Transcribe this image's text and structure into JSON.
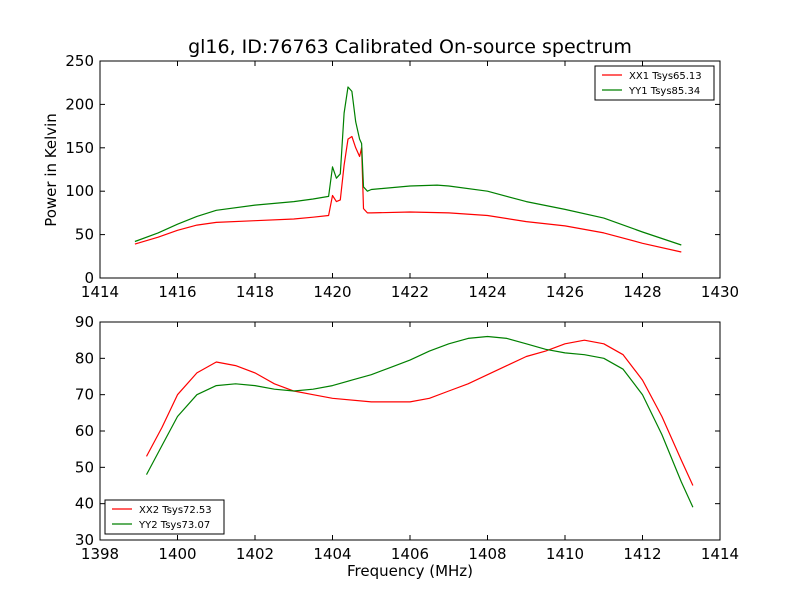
{
  "figure": {
    "background": "#ffffff"
  },
  "chart_data": [
    {
      "type": "line",
      "title": "gl16, ID:76763 Calibrated On-source spectrum",
      "xlabel": "",
      "ylabel": "Power in Kelvin",
      "xlim": [
        1414,
        1430
      ],
      "ylim": [
        0,
        250
      ],
      "xticks": [
        "1414",
        "1416",
        "1418",
        "1420",
        "1422",
        "1424",
        "1426",
        "1428",
        "1430"
      ],
      "yticks": [
        "0",
        "50",
        "100",
        "150",
        "200",
        "250"
      ],
      "grid": false,
      "legend_position": "top-right",
      "series": [
        {
          "name": "XX1 Tsys65.13",
          "color": "#ff0000",
          "x": [
            1414.9,
            1415.5,
            1416,
            1416.5,
            1417,
            1418,
            1419,
            1419.5,
            1419.9,
            1420.0,
            1420.1,
            1420.2,
            1420.3,
            1420.4,
            1420.5,
            1420.6,
            1420.7,
            1420.75,
            1420.8,
            1420.9,
            1421,
            1422,
            1423,
            1424,
            1425,
            1426,
            1427,
            1428,
            1429
          ],
          "y": [
            39,
            47,
            55,
            61,
            64,
            66,
            68,
            70,
            72,
            95,
            88,
            90,
            130,
            160,
            163,
            150,
            140,
            150,
            80,
            75,
            75,
            76,
            75,
            72,
            65,
            60,
            52,
            40,
            30
          ]
        },
        {
          "name": "YY1 Tsys85.34",
          "color": "#008000",
          "x": [
            1414.9,
            1415.5,
            1416,
            1416.5,
            1417,
            1418,
            1419,
            1419.5,
            1419.9,
            1420.0,
            1420.1,
            1420.2,
            1420.3,
            1420.4,
            1420.5,
            1420.6,
            1420.7,
            1420.75,
            1420.8,
            1420.9,
            1421,
            1422,
            1422.7,
            1423,
            1424,
            1425,
            1426,
            1427,
            1428,
            1429
          ],
          "y": [
            42,
            52,
            62,
            71,
            78,
            84,
            88,
            91,
            94,
            128,
            115,
            120,
            190,
            220,
            215,
            180,
            160,
            155,
            105,
            100,
            102,
            106,
            107,
            106,
            100,
            88,
            79,
            69,
            53,
            38
          ]
        }
      ]
    },
    {
      "type": "line",
      "title": "",
      "xlabel": "Frequency (MHz)",
      "ylabel": "",
      "xlim": [
        1398,
        1414
      ],
      "ylim": [
        30,
        90
      ],
      "xticks": [
        "1398",
        "1400",
        "1402",
        "1404",
        "1406",
        "1408",
        "1410",
        "1412",
        "1414"
      ],
      "yticks": [
        "30",
        "40",
        "50",
        "60",
        "70",
        "80",
        "90"
      ],
      "grid": false,
      "legend_position": "bottom-left",
      "series": [
        {
          "name": "XX2 Tsys72.53",
          "color": "#ff0000",
          "x": [
            1399.2,
            1399.6,
            1400,
            1400.5,
            1401,
            1401.5,
            1402,
            1402.5,
            1403,
            1403.5,
            1404,
            1405,
            1406,
            1406.5,
            1407,
            1407.5,
            1408,
            1408.5,
            1409,
            1409.5,
            1410,
            1410.5,
            1411,
            1411.5,
            1412,
            1412.5,
            1413,
            1413.3
          ],
          "y": [
            53,
            61,
            70,
            76,
            79,
            78,
            76,
            73,
            71,
            70,
            69,
            68,
            68,
            69,
            71,
            73,
            75.5,
            78,
            80.5,
            82,
            84,
            85,
            84,
            81,
            74,
            64,
            52,
            45
          ]
        },
        {
          "name": "YY2 Tsys73.07",
          "color": "#008000",
          "x": [
            1399.2,
            1399.6,
            1400,
            1400.5,
            1401,
            1401.5,
            1402,
            1402.5,
            1403,
            1403.5,
            1404,
            1404.5,
            1405,
            1405.5,
            1406,
            1406.5,
            1407,
            1407.5,
            1408,
            1408.5,
            1409,
            1409.5,
            1410,
            1410.5,
            1411,
            1411.5,
            1412,
            1412.5,
            1413,
            1413.3
          ],
          "y": [
            48,
            56,
            64,
            70,
            72.5,
            73,
            72.5,
            71.5,
            71,
            71.5,
            72.5,
            74,
            75.5,
            77.5,
            79.5,
            82,
            84,
            85.5,
            86,
            85.5,
            84,
            82.5,
            81.5,
            81,
            80,
            77,
            70,
            59,
            46,
            39
          ]
        }
      ]
    }
  ]
}
